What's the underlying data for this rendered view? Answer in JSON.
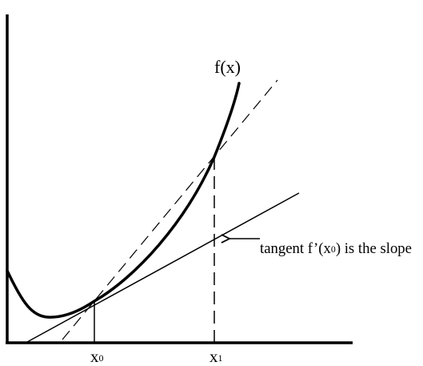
{
  "diagram": {
    "curve_label": "f(x)",
    "x0_label": "x",
    "x0_subscript": "0",
    "x1_label": "x",
    "x1_subscript": "1",
    "annotation_prefix": "tangent f’(x",
    "annotation_subscript": "0",
    "annotation_suffix": ") is the slope"
  }
}
